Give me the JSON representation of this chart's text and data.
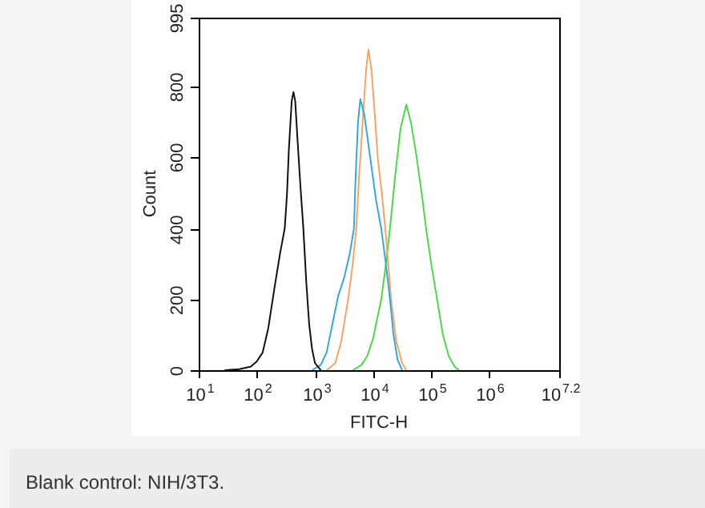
{
  "chart_data": {
    "type": "line",
    "xlabel": "FITC-H",
    "ylabel": "Count",
    "log": "x",
    "marker": "none",
    "line_style": "solid",
    "xlim": [
      10,
      15848932
    ],
    "ylim": [
      0,
      995
    ],
    "xticks": [
      {
        "value": 10,
        "label": "10$^{1}$"
      },
      {
        "value": 100,
        "label": "10$^{2}$"
      },
      {
        "value": 1000,
        "label": "10$^{3}$"
      },
      {
        "value": 10000,
        "label": "10$^{4}$"
      },
      {
        "value": 100000,
        "label": "10$^{5}$"
      },
      {
        "value": 1000000,
        "label": "10$^{6}$"
      },
      {
        "value": 15848932,
        "label": "10$^{7.2}$"
      }
    ],
    "yticks": [
      0,
      200,
      400,
      600,
      800,
      995
    ],
    "series": [
      {
        "color": "#111111",
        "x": [
          28,
          50,
          79,
          100,
          126,
          158,
          200,
          251,
          302,
          331,
          355,
          398,
          427,
          457,
          501,
          562,
          631,
          708,
          794,
          891,
          1000,
          1259
        ],
        "values": [
          0,
          3,
          10,
          25,
          50,
          120,
          230,
          330,
          400,
          500,
          620,
          760,
          785,
          760,
          650,
          520,
          400,
          250,
          130,
          60,
          20,
          0
        ]
      },
      {
        "color": "#3aa6d8",
        "x": [
          891,
          1259,
          1585,
          1995,
          2512,
          3162,
          3981,
          4677,
          5012,
          5495,
          6026,
          7079,
          8913,
          11220,
          13800,
          16600,
          19500,
          22400,
          26300,
          31600
        ],
        "values": [
          0,
          15,
          50,
          130,
          210,
          260,
          330,
          400,
          550,
          700,
          765,
          720,
          600,
          480,
          400,
          300,
          200,
          100,
          30,
          0
        ]
      },
      {
        "color": "#f4a46a",
        "x": [
          1585,
          2239,
          2818,
          3715,
          4467,
          5129,
          5754,
          6607,
          7586,
          8318,
          9333,
          10700,
          12000,
          14100,
          16200,
          20400,
          25100,
          31600,
          37200
        ],
        "values": [
          0,
          20,
          80,
          200,
          300,
          400,
          550,
          700,
          850,
          905,
          850,
          720,
          600,
          500,
          400,
          200,
          80,
          20,
          0
        ]
      },
      {
        "color": "#4fd64f",
        "x": [
          4467,
          6310,
          7943,
          10000,
          13800,
          16600,
          19500,
          24000,
          29500,
          37200,
          44700,
          56200,
          70800,
          81300,
          100000,
          125900,
          158500,
          199500,
          251200,
          302000
        ],
        "values": [
          0,
          15,
          40,
          90,
          200,
          300,
          400,
          550,
          680,
          750,
          700,
          600,
          480,
          400,
          300,
          200,
          100,
          40,
          10,
          0
        ]
      }
    ],
    "annotations": [
      "Blank control: NIH/3T3."
    ]
  }
}
